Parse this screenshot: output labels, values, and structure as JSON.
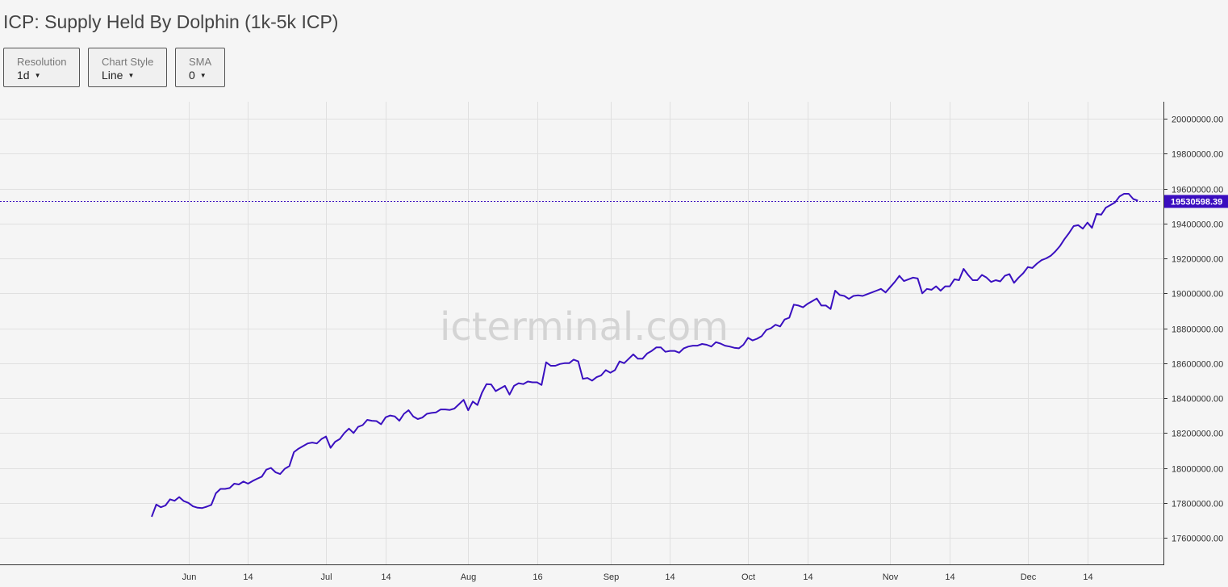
{
  "title": "ICP: Supply Held By Dolphin (1k-5k ICP)",
  "controls": {
    "resolution": {
      "label": "Resolution",
      "value": "1d"
    },
    "chart_style": {
      "label": "Chart Style",
      "value": "Line"
    },
    "sma": {
      "label": "SMA",
      "value": "0"
    }
  },
  "watermark": "icterminal.com",
  "colors": {
    "line": "#3a10c0",
    "price_tag_bg": "#3a0dbf",
    "price_tag_text": "#ffffff",
    "grid": "#e0e0e0",
    "background": "#f5f5f5"
  },
  "chart_data": {
    "type": "line",
    "title": "ICP: Supply Held By Dolphin (1k-5k ICP)",
    "x_start": "2024-05-17",
    "x_end": "2024-12-23",
    "x_ticks": [
      {
        "date": "2024-06-01",
        "label": "Jun"
      },
      {
        "date": "2024-06-14",
        "label": "14"
      },
      {
        "date": "2024-07-01",
        "label": "Jul"
      },
      {
        "date": "2024-07-14",
        "label": "14"
      },
      {
        "date": "2024-08-01",
        "label": "Aug"
      },
      {
        "date": "2024-08-16",
        "label": "16"
      },
      {
        "date": "2024-09-01",
        "label": "Sep"
      },
      {
        "date": "2024-09-14",
        "label": "14"
      },
      {
        "date": "2024-10-01",
        "label": "Oct"
      },
      {
        "date": "2024-10-14",
        "label": "14"
      },
      {
        "date": "2024-11-01",
        "label": "Nov"
      },
      {
        "date": "2024-11-14",
        "label": "14"
      },
      {
        "date": "2024-12-01",
        "label": "Dec"
      },
      {
        "date": "2024-12-14",
        "label": "14"
      }
    ],
    "y_ticks": [
      "17600000.00",
      "17800000.00",
      "18000000.00",
      "18200000.00",
      "18400000.00",
      "18600000.00",
      "18800000.00",
      "19000000.00",
      "19200000.00",
      "19400000.00",
      "19600000.00",
      "19800000.00",
      "20000000.00"
    ],
    "ylim": [
      17440000,
      20100000
    ],
    "last_value_label": "19530598.39",
    "last_value": 19530598.39,
    "grid": true,
    "series": [
      {
        "points": [
          [
            "2024-05-24",
            17720000
          ],
          [
            "2024-05-25",
            17790000
          ],
          [
            "2024-05-26",
            17775000
          ],
          [
            "2024-05-27",
            17785000
          ],
          [
            "2024-05-28",
            17820000
          ],
          [
            "2024-05-29",
            17812000
          ],
          [
            "2024-05-30",
            17833000
          ],
          [
            "2024-05-31",
            17810000
          ],
          [
            "2024-06-01",
            17800000
          ],
          [
            "2024-06-02",
            17780000
          ],
          [
            "2024-06-03",
            17772000
          ],
          [
            "2024-06-04",
            17770000
          ],
          [
            "2024-06-05",
            17778000
          ],
          [
            "2024-06-06",
            17788000
          ],
          [
            "2024-06-07",
            17855000
          ],
          [
            "2024-06-08",
            17880000
          ],
          [
            "2024-06-09",
            17880000
          ],
          [
            "2024-06-10",
            17885000
          ],
          [
            "2024-06-11",
            17910000
          ],
          [
            "2024-06-12",
            17905000
          ],
          [
            "2024-06-13",
            17922000
          ],
          [
            "2024-06-14",
            17910000
          ],
          [
            "2024-06-15",
            17925000
          ],
          [
            "2024-06-16",
            17938000
          ],
          [
            "2024-06-17",
            17950000
          ],
          [
            "2024-06-18",
            17990000
          ],
          [
            "2024-06-19",
            18000000
          ],
          [
            "2024-06-20",
            17975000
          ],
          [
            "2024-06-21",
            17965000
          ],
          [
            "2024-06-22",
            17995000
          ],
          [
            "2024-06-23",
            18010000
          ],
          [
            "2024-06-24",
            18090000
          ],
          [
            "2024-06-25",
            18110000
          ],
          [
            "2024-06-26",
            18125000
          ],
          [
            "2024-06-27",
            18140000
          ],
          [
            "2024-06-28",
            18145000
          ],
          [
            "2024-06-29",
            18140000
          ],
          [
            "2024-06-30",
            18165000
          ],
          [
            "2024-07-01",
            18180000
          ],
          [
            "2024-07-02",
            18115000
          ],
          [
            "2024-07-03",
            18150000
          ],
          [
            "2024-07-04",
            18165000
          ],
          [
            "2024-07-05",
            18200000
          ],
          [
            "2024-07-06",
            18225000
          ],
          [
            "2024-07-07",
            18200000
          ],
          [
            "2024-07-08",
            18235000
          ],
          [
            "2024-07-09",
            18245000
          ],
          [
            "2024-07-10",
            18275000
          ],
          [
            "2024-07-11",
            18270000
          ],
          [
            "2024-07-12",
            18268000
          ],
          [
            "2024-07-13",
            18250000
          ],
          [
            "2024-07-14",
            18290000
          ],
          [
            "2024-07-15",
            18300000
          ],
          [
            "2024-07-16",
            18295000
          ],
          [
            "2024-07-17",
            18270000
          ],
          [
            "2024-07-18",
            18310000
          ],
          [
            "2024-07-19",
            18330000
          ],
          [
            "2024-07-20",
            18295000
          ],
          [
            "2024-07-21",
            18280000
          ],
          [
            "2024-07-22",
            18288000
          ],
          [
            "2024-07-23",
            18310000
          ],
          [
            "2024-07-24",
            18315000
          ],
          [
            "2024-07-25",
            18318000
          ],
          [
            "2024-07-26",
            18335000
          ],
          [
            "2024-07-27",
            18335000
          ],
          [
            "2024-07-28",
            18332000
          ],
          [
            "2024-07-29",
            18340000
          ],
          [
            "2024-07-30",
            18365000
          ],
          [
            "2024-07-31",
            18390000
          ],
          [
            "2024-08-01",
            18330000
          ],
          [
            "2024-08-02",
            18380000
          ],
          [
            "2024-08-03",
            18360000
          ],
          [
            "2024-08-04",
            18430000
          ],
          [
            "2024-08-05",
            18480000
          ],
          [
            "2024-08-06",
            18478000
          ],
          [
            "2024-08-07",
            18440000
          ],
          [
            "2024-08-08",
            18455000
          ],
          [
            "2024-08-09",
            18470000
          ],
          [
            "2024-08-10",
            18420000
          ],
          [
            "2024-08-11",
            18470000
          ],
          [
            "2024-08-12",
            18485000
          ],
          [
            "2024-08-13",
            18480000
          ],
          [
            "2024-08-14",
            18495000
          ],
          [
            "2024-08-15",
            18490000
          ],
          [
            "2024-08-16",
            18490000
          ],
          [
            "2024-08-17",
            18475000
          ],
          [
            "2024-08-18",
            18605000
          ],
          [
            "2024-08-19",
            18585000
          ],
          [
            "2024-08-20",
            18585000
          ],
          [
            "2024-08-21",
            18595000
          ],
          [
            "2024-08-22",
            18600000
          ],
          [
            "2024-08-23",
            18600000
          ],
          [
            "2024-08-24",
            18620000
          ],
          [
            "2024-08-25",
            18610000
          ],
          [
            "2024-08-26",
            18510000
          ],
          [
            "2024-08-27",
            18515000
          ],
          [
            "2024-08-28",
            18500000
          ],
          [
            "2024-08-29",
            18520000
          ],
          [
            "2024-08-30",
            18530000
          ],
          [
            "2024-08-31",
            18560000
          ],
          [
            "2024-09-01",
            18545000
          ],
          [
            "2024-09-02",
            18560000
          ],
          [
            "2024-09-03",
            18610000
          ],
          [
            "2024-09-04",
            18600000
          ],
          [
            "2024-09-05",
            18625000
          ],
          [
            "2024-09-06",
            18650000
          ],
          [
            "2024-09-07",
            18625000
          ],
          [
            "2024-09-08",
            18625000
          ],
          [
            "2024-09-09",
            18655000
          ],
          [
            "2024-09-10",
            18670000
          ],
          [
            "2024-09-11",
            18690000
          ],
          [
            "2024-09-12",
            18690000
          ],
          [
            "2024-09-13",
            18665000
          ],
          [
            "2024-09-14",
            18670000
          ],
          [
            "2024-09-15",
            18670000
          ],
          [
            "2024-09-16",
            18660000
          ],
          [
            "2024-09-17",
            18685000
          ],
          [
            "2024-09-18",
            18695000
          ],
          [
            "2024-09-19",
            18700000
          ],
          [
            "2024-09-20",
            18700000
          ],
          [
            "2024-09-21",
            18710000
          ],
          [
            "2024-09-22",
            18705000
          ],
          [
            "2024-09-23",
            18695000
          ],
          [
            "2024-09-24",
            18720000
          ],
          [
            "2024-09-25",
            18712000
          ],
          [
            "2024-09-26",
            18700000
          ],
          [
            "2024-09-27",
            18695000
          ],
          [
            "2024-09-28",
            18688000
          ],
          [
            "2024-09-29",
            18685000
          ],
          [
            "2024-09-30",
            18705000
          ],
          [
            "2024-10-01",
            18745000
          ],
          [
            "2024-10-02",
            18730000
          ],
          [
            "2024-10-03",
            18740000
          ],
          [
            "2024-10-04",
            18755000
          ],
          [
            "2024-10-05",
            18790000
          ],
          [
            "2024-10-06",
            18800000
          ],
          [
            "2024-10-07",
            18820000
          ],
          [
            "2024-10-08",
            18810000
          ],
          [
            "2024-10-09",
            18850000
          ],
          [
            "2024-10-10",
            18860000
          ],
          [
            "2024-10-11",
            18935000
          ],
          [
            "2024-10-12",
            18930000
          ],
          [
            "2024-10-13",
            18920000
          ],
          [
            "2024-10-14",
            18940000
          ],
          [
            "2024-10-15",
            18955000
          ],
          [
            "2024-10-16",
            18970000
          ],
          [
            "2024-10-17",
            18930000
          ],
          [
            "2024-10-18",
            18930000
          ],
          [
            "2024-10-19",
            18910000
          ],
          [
            "2024-10-20",
            19015000
          ],
          [
            "2024-10-21",
            18990000
          ],
          [
            "2024-10-22",
            18985000
          ],
          [
            "2024-10-23",
            18968000
          ],
          [
            "2024-10-24",
            18985000
          ],
          [
            "2024-10-25",
            18988000
          ],
          [
            "2024-10-26",
            18985000
          ],
          [
            "2024-10-27",
            18995000
          ],
          [
            "2024-10-28",
            19005000
          ],
          [
            "2024-10-29",
            19015000
          ],
          [
            "2024-10-30",
            19025000
          ],
          [
            "2024-10-31",
            19005000
          ],
          [
            "2024-11-01",
            19035000
          ],
          [
            "2024-11-02",
            19065000
          ],
          [
            "2024-11-03",
            19100000
          ],
          [
            "2024-11-04",
            19070000
          ],
          [
            "2024-11-05",
            19080000
          ],
          [
            "2024-11-06",
            19090000
          ],
          [
            "2024-11-07",
            19085000
          ],
          [
            "2024-11-08",
            19000000
          ],
          [
            "2024-11-09",
            19025000
          ],
          [
            "2024-11-10",
            19020000
          ],
          [
            "2024-11-11",
            19040000
          ],
          [
            "2024-11-12",
            19015000
          ],
          [
            "2024-11-13",
            19040000
          ],
          [
            "2024-11-14",
            19040000
          ],
          [
            "2024-11-15",
            19080000
          ],
          [
            "2024-11-16",
            19075000
          ],
          [
            "2024-11-17",
            19140000
          ],
          [
            "2024-11-18",
            19105000
          ],
          [
            "2024-11-19",
            19075000
          ],
          [
            "2024-11-20",
            19075000
          ],
          [
            "2024-11-21",
            19105000
          ],
          [
            "2024-11-22",
            19090000
          ],
          [
            "2024-11-23",
            19065000
          ],
          [
            "2024-11-24",
            19075000
          ],
          [
            "2024-11-25",
            19068000
          ],
          [
            "2024-11-26",
            19100000
          ],
          [
            "2024-11-27",
            19110000
          ],
          [
            "2024-11-28",
            19060000
          ],
          [
            "2024-11-29",
            19090000
          ],
          [
            "2024-11-30",
            19115000
          ],
          [
            "2024-12-01",
            19150000
          ],
          [
            "2024-12-02",
            19145000
          ],
          [
            "2024-12-03",
            19170000
          ],
          [
            "2024-12-04",
            19190000
          ],
          [
            "2024-12-05",
            19200000
          ],
          [
            "2024-12-06",
            19215000
          ],
          [
            "2024-12-07",
            19240000
          ],
          [
            "2024-12-08",
            19270000
          ],
          [
            "2024-12-09",
            19310000
          ],
          [
            "2024-12-10",
            19345000
          ],
          [
            "2024-12-11",
            19385000
          ],
          [
            "2024-12-12",
            19390000
          ],
          [
            "2024-12-13",
            19370000
          ],
          [
            "2024-12-14",
            19405000
          ],
          [
            "2024-12-15",
            19375000
          ],
          [
            "2024-12-16",
            19455000
          ],
          [
            "2024-12-17",
            19450000
          ],
          [
            "2024-12-18",
            19490000
          ],
          [
            "2024-12-19",
            19505000
          ],
          [
            "2024-12-20",
            19520000
          ],
          [
            "2024-12-21",
            19555000
          ],
          [
            "2024-12-22",
            19570000
          ],
          [
            "2024-12-23",
            19570000
          ],
          [
            "2024-12-24",
            19540000
          ],
          [
            "2024-12-25",
            19530598.39
          ]
        ]
      }
    ]
  }
}
